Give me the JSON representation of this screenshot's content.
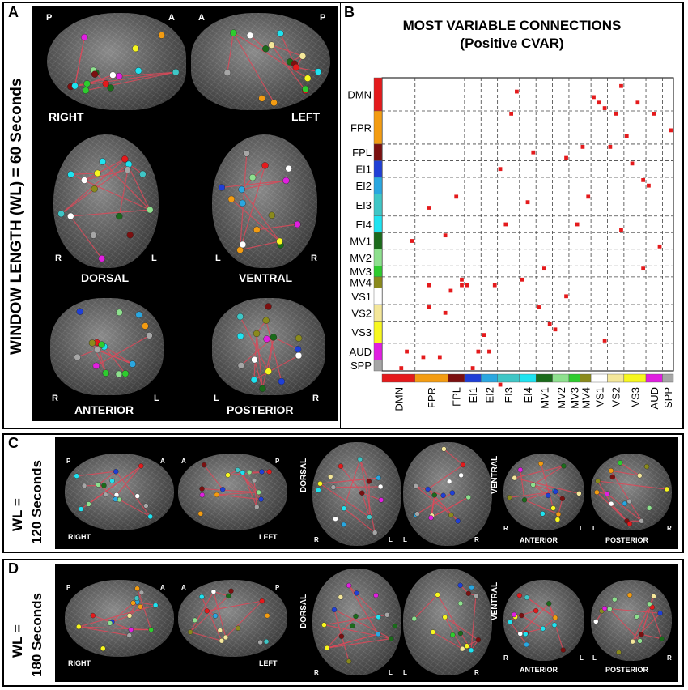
{
  "panel_a": {
    "letter": "A",
    "axis_label": "WINDOW LENGTH (WL)  = 60 Seconds",
    "views": {
      "right": "RIGHT",
      "left": "LEFT",
      "dorsal": "DORSAL",
      "ventral": "VENTRAL",
      "anterior": "ANTERIOR",
      "posterior": "POSTERIOR"
    },
    "corners": {
      "p": "P",
      "a": "A",
      "r": "R",
      "l": "L"
    }
  },
  "panel_b": {
    "letter": "B",
    "title_line1": "MOST VARIABLE CONNECTIONS",
    "title_line2": "(Positive CVAR)"
  },
  "panel_c": {
    "letter": "C",
    "wl_line1": "WL =",
    "wl_line2": "120 Seconds"
  },
  "panel_d": {
    "letter": "D",
    "wl_line1": "WL =",
    "wl_line2": "180 Seconds"
  },
  "chart_data": {
    "type": "heatmap",
    "title": "MOST VARIABLE CONNECTIONS",
    "subtitle": "(Positive CVAR)",
    "network_labels": [
      "DMN",
      "FPR",
      "FPL",
      "EI1",
      "EI2",
      "EI3",
      "EI4",
      "MV1",
      "MV2",
      "MV3",
      "MV4",
      "VS1",
      "VS2",
      "VS3",
      "AUD",
      "SPP"
    ],
    "network_colors": {
      "DMN": "#e41a1c",
      "FPR": "#f39c12",
      "FPL": "#7b1010",
      "EI1": "#1f3fd6",
      "EI2": "#2aa7e0",
      "EI3": "#3fc6c6",
      "EI4": "#1fe3f0",
      "MV1": "#1b6b1b",
      "MV2": "#8ee08e",
      "MV3": "#2ecc2e",
      "MV4": "#8a8a1c",
      "VS1": "#ffffff",
      "VS2": "#f4e79a",
      "VS3": "#f7f71f",
      "AUD": "#e01fe0",
      "SPP": "#a6a6a6"
    },
    "network_sizes": [
      6,
      6,
      3,
      3,
      3,
      4,
      3,
      3,
      3,
      2,
      2,
      3,
      3,
      4,
      3,
      2
    ],
    "total_nodes": 53,
    "points": [
      [
        8,
        23
      ],
      [
        3,
        52
      ],
      [
        4,
        49
      ],
      [
        8,
        41
      ],
      [
        10,
        50
      ],
      [
        11,
        42
      ],
      [
        11,
        28
      ],
      [
        8,
        37
      ],
      [
        13,
        21
      ],
      [
        15,
        37
      ],
      [
        20,
        37
      ],
      [
        21,
        16
      ],
      [
        22,
        26
      ],
      [
        23,
        6
      ],
      [
        24,
        2
      ],
      [
        27,
        13
      ],
      [
        31,
        45
      ],
      [
        36,
        12
      ],
      [
        17,
        49
      ],
      [
        38,
        3
      ],
      [
        39,
        4
      ],
      [
        40,
        47
      ],
      [
        42,
        6
      ],
      [
        43,
        1
      ],
      [
        44,
        10
      ],
      [
        45,
        15
      ],
      [
        47,
        34
      ],
      [
        48,
        19
      ],
      [
        49,
        6
      ],
      [
        50,
        30
      ],
      [
        41,
        12
      ],
      [
        46,
        4
      ],
      [
        35,
        26
      ],
      [
        33,
        14
      ],
      [
        14,
        37
      ],
      [
        19,
        49
      ],
      [
        25,
        36
      ],
      [
        28,
        41
      ],
      [
        33,
        39
      ],
      [
        18,
        46
      ],
      [
        5,
        29
      ],
      [
        7,
        50
      ],
      [
        29,
        34
      ],
      [
        37,
        21
      ],
      [
        43,
        27
      ],
      [
        26,
        22
      ],
      [
        12,
        38
      ],
      [
        30,
        44
      ],
      [
        52,
        9
      ],
      [
        47,
        18
      ],
      [
        21,
        55
      ],
      [
        16,
        52
      ],
      [
        40,
        5
      ],
      [
        14,
        36
      ]
    ]
  },
  "section_c": {
    "views": {
      "right": "RIGHT",
      "left": "LEFT",
      "dorsal": "DORSAL",
      "ventral": "VENTRAL",
      "anterior": "ANTERIOR",
      "posterior": "POSTERIOR"
    }
  },
  "section_d": {
    "views": {
      "right": "RIGHT",
      "left": "LEFT",
      "dorsal": "DORSAL",
      "ventral": "VENTRAL",
      "anterior": "ANTERIOR",
      "posterior": "POSTERIOR"
    }
  }
}
